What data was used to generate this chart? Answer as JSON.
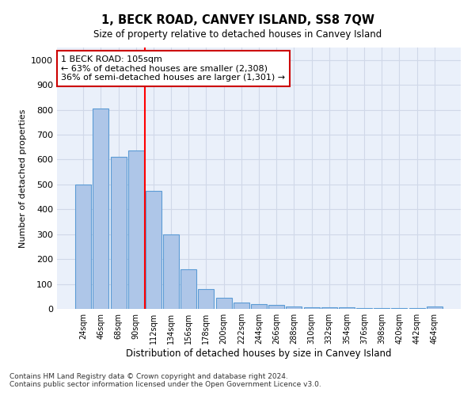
{
  "title": "1, BECK ROAD, CANVEY ISLAND, SS8 7QW",
  "subtitle": "Size of property relative to detached houses in Canvey Island",
  "xlabel": "Distribution of detached houses by size in Canvey Island",
  "ylabel": "Number of detached properties",
  "bar_labels": [
    "24sqm",
    "46sqm",
    "68sqm",
    "90sqm",
    "112sqm",
    "134sqm",
    "156sqm",
    "178sqm",
    "200sqm",
    "222sqm",
    "244sqm",
    "266sqm",
    "288sqm",
    "310sqm",
    "332sqm",
    "354sqm",
    "376sqm",
    "398sqm",
    "420sqm",
    "442sqm",
    "464sqm"
  ],
  "bar_values": [
    500,
    805,
    610,
    635,
    475,
    300,
    160,
    78,
    45,
    25,
    20,
    15,
    10,
    7,
    5,
    5,
    4,
    3,
    3,
    3,
    8
  ],
  "bar_color": "#AEC6E8",
  "bar_edge_color": "#5B9BD5",
  "grid_color": "#D0D8E8",
  "background_color": "#EAF0FA",
  "red_line_index": 4,
  "annotation_text": "1 BECK ROAD: 105sqm\n← 63% of detached houses are smaller (2,308)\n36% of semi-detached houses are larger (1,301) →",
  "annotation_box_color": "#ffffff",
  "annotation_box_edge": "#cc0000",
  "ylim": [
    0,
    1050
  ],
  "yticks": [
    0,
    100,
    200,
    300,
    400,
    500,
    600,
    700,
    800,
    900,
    1000
  ],
  "footnote1": "Contains HM Land Registry data © Crown copyright and database right 2024.",
  "footnote2": "Contains public sector information licensed under the Open Government Licence v3.0."
}
